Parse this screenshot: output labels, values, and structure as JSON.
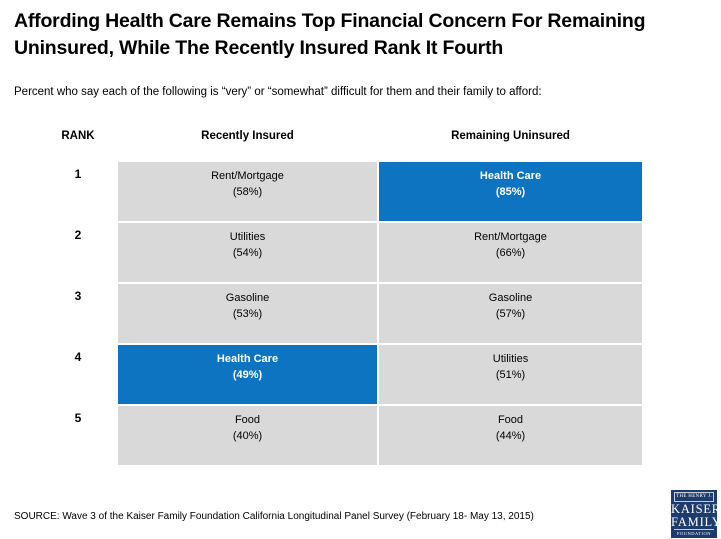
{
  "page": {
    "title": "Affording Health Care Remains Top Financial Concern For Remaining\nUninsured, While The Recently Insured Rank It Fourth",
    "subtitle": "Percent who say each of the following is “very” or “somewhat” difficult for them and their family to afford:",
    "source": "SOURCE: Wave 3 of the Kaiser Family Foundation California Longitudinal Panel Survey (February 18- May 13, 2015)"
  },
  "colors": {
    "highlight_blue": "#0d74c2",
    "cell_gray": "#d9d9d9",
    "logo_navy": "#1d3c6d",
    "text_black": "#000000"
  },
  "table": {
    "headers": {
      "rank": "RANK",
      "col1": "Recently Insured",
      "col2": "Remaining Uninsured"
    },
    "rows": [
      {
        "rank": "1",
        "recently_insured": {
          "label": "Rent/Mortgage",
          "value": "(58%)",
          "highlight": false
        },
        "remaining_uninsured": {
          "label": "Health Care",
          "value": "(85%)",
          "highlight": true
        }
      },
      {
        "rank": "2",
        "recently_insured": {
          "label": "Utilities",
          "value": "(54%)",
          "highlight": false
        },
        "remaining_uninsured": {
          "label": "Rent/Mortgage",
          "value": "(66%)",
          "highlight": false
        }
      },
      {
        "rank": "3",
        "recently_insured": {
          "label": "Gasoline",
          "value": "(53%)",
          "highlight": false
        },
        "remaining_uninsured": {
          "label": "Gasoline",
          "value": "(57%)",
          "highlight": false
        }
      },
      {
        "rank": "4",
        "recently_insured": {
          "label": "Health Care",
          "value": "(49%)",
          "highlight": true
        },
        "remaining_uninsured": {
          "label": "Utilities",
          "value": "(51%)",
          "highlight": false
        }
      },
      {
        "rank": "5",
        "recently_insured": {
          "label": "Food",
          "value": "(40%)",
          "highlight": false
        },
        "remaining_uninsured": {
          "label": "Food",
          "value": "(44%)",
          "highlight": false
        }
      }
    ]
  },
  "logo": {
    "line1": "THE HENRY J.",
    "line2": "KAISER",
    "line3": "FAMILY",
    "line4": "FOUNDATION"
  },
  "chart_data": {
    "type": "table",
    "title": "Affording Health Care Remains Top Financial Concern For Remaining Uninsured, While The Recently Insured Rank It Fourth",
    "subtitle": "Percent who say each of the following is “very” or “somewhat” difficult for them and their family to afford:",
    "columns": [
      "RANK",
      "Recently Insured",
      "Remaining Uninsured"
    ],
    "rows": [
      [
        "1",
        "Rent/Mortgage (58%)",
        "Health Care (85%)"
      ],
      [
        "2",
        "Utilities (54%)",
        "Rent/Mortgage (66%)"
      ],
      [
        "3",
        "Gasoline (53%)",
        "Gasoline (57%)"
      ],
      [
        "4",
        "Health Care (49%)",
        "Utilities (51%)"
      ],
      [
        "5",
        "Food (40%)",
        "Food (44%)"
      ]
    ],
    "highlighted_cells": [
      {
        "rank": "1",
        "column": "Remaining Uninsured",
        "label": "Health Care",
        "value": 85
      },
      {
        "rank": "4",
        "column": "Recently Insured",
        "label": "Health Care",
        "value": 49
      }
    ],
    "series": [
      {
        "name": "Recently Insured",
        "categories": [
          "Rent/Mortgage",
          "Utilities",
          "Gasoline",
          "Health Care",
          "Food"
        ],
        "values": [
          58,
          54,
          53,
          49,
          40
        ]
      },
      {
        "name": "Remaining Uninsured",
        "categories": [
          "Health Care",
          "Rent/Mortgage",
          "Gasoline",
          "Utilities",
          "Food"
        ],
        "values": [
          85,
          66,
          57,
          51,
          44
        ]
      }
    ],
    "source": "SOURCE: Wave 3 of the Kaiser Family Foundation California Longitudinal Panel Survey (February 18- May 13, 2015)"
  }
}
